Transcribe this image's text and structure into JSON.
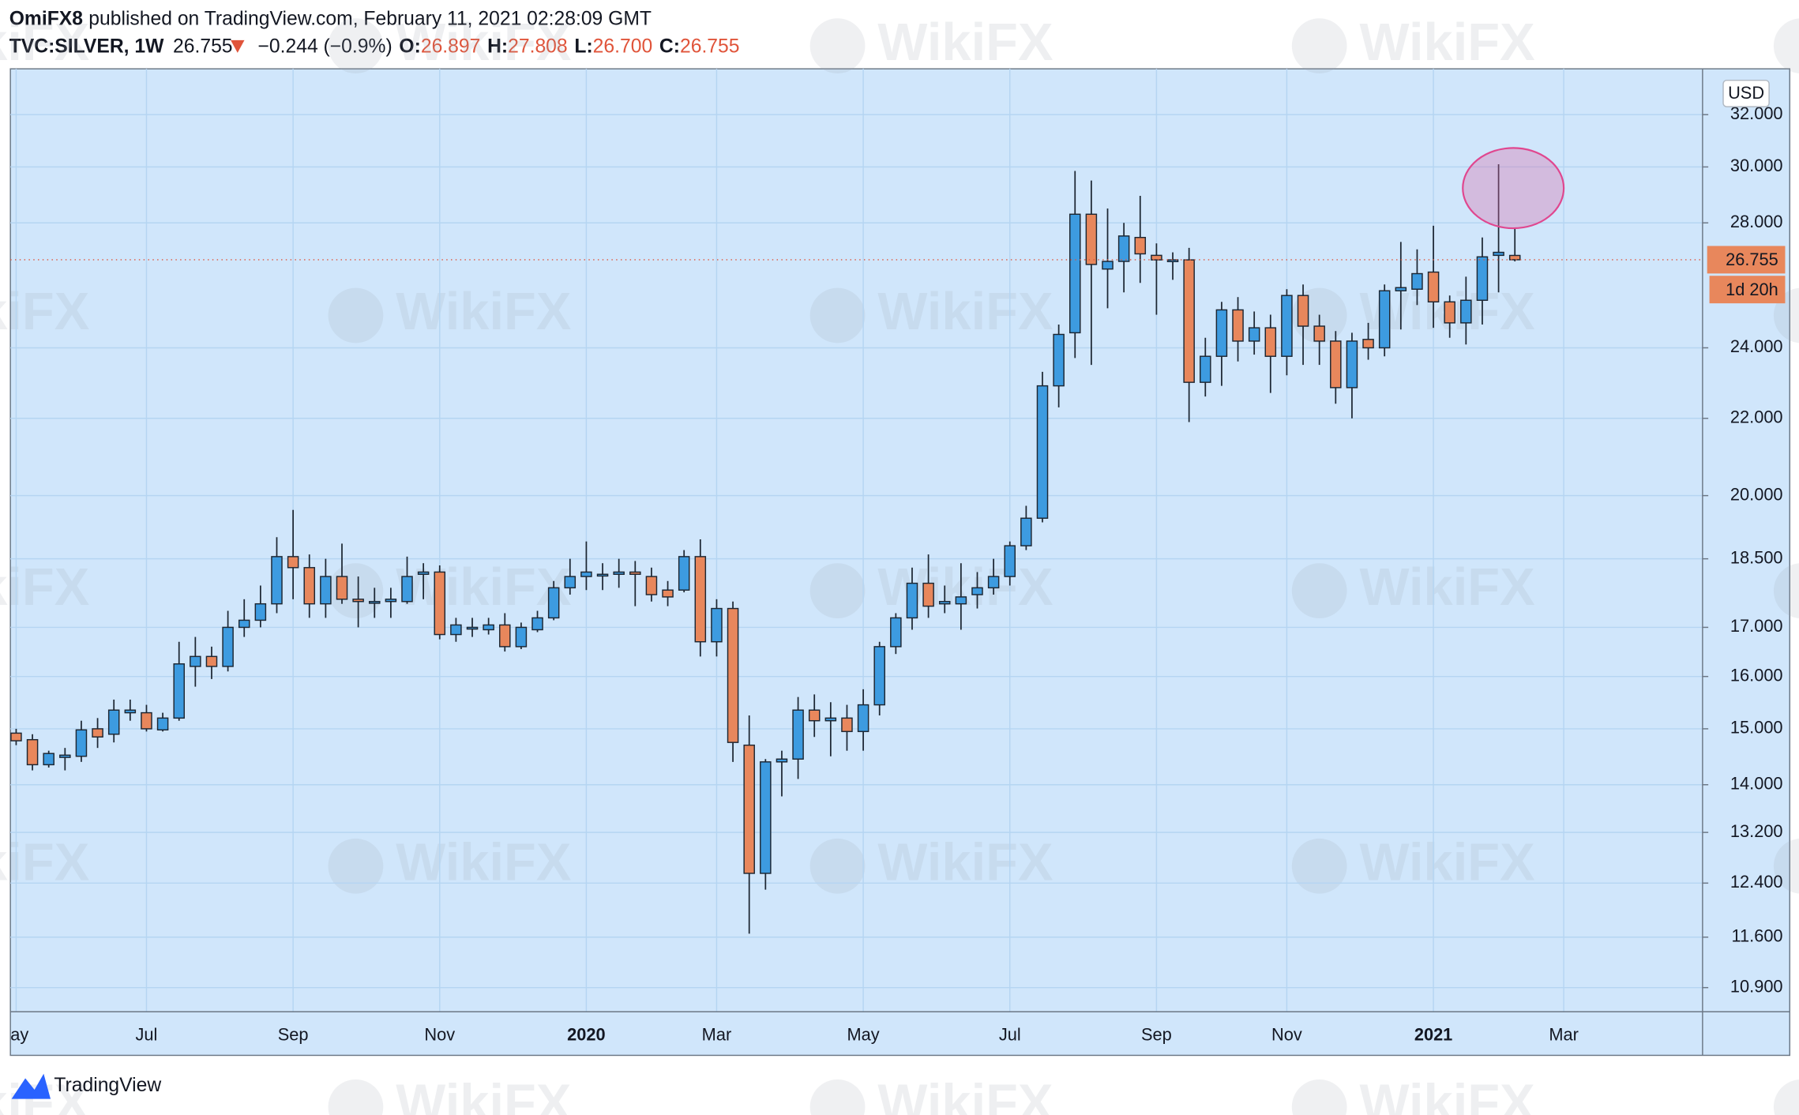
{
  "header": {
    "author": "OmiFX8",
    "published": "published on TradingView.com, February 11, 2021 02:28:09 GMT",
    "symbol": "TVC:SILVER, 1W",
    "last": "26.755",
    "change": "−0.244 (−0.9%)",
    "o_label": "O:",
    "o": "26.897",
    "h_label": "H:",
    "h": "27.808",
    "l_label": "L:",
    "l": "26.700",
    "c_label": "C:",
    "c": "26.755"
  },
  "watermark": "WikiFX",
  "footer": {
    "brand": "TradingView"
  },
  "chart_data": {
    "type": "candlestick",
    "currency": "USD",
    "price_line": 26.755,
    "countdown": "1d 20h",
    "up_color": "#3d9be0",
    "down_color": "#e8875c",
    "log_scale": true,
    "grid": true,
    "categories": [
      "ay",
      null,
      null,
      null,
      null,
      null,
      null,
      null,
      "Jul",
      null,
      null,
      null,
      null,
      null,
      null,
      null,
      null,
      "Sep",
      null,
      null,
      null,
      null,
      null,
      null,
      null,
      null,
      "Nov",
      null,
      null,
      null,
      null,
      null,
      null,
      null,
      null,
      "2020",
      null,
      null,
      null,
      null,
      null,
      null,
      null,
      "Mar",
      null,
      null,
      null,
      null,
      null,
      null,
      null,
      null,
      "May",
      null,
      null,
      null,
      null,
      null,
      null,
      null,
      null,
      "Jul",
      null,
      null,
      null,
      null,
      null,
      null,
      null,
      null,
      "Sep",
      null,
      null,
      null,
      null,
      null,
      null,
      null,
      "Nov",
      null,
      null,
      null,
      null,
      null,
      null,
      null,
      null,
      "2021",
      null,
      null,
      null,
      null,
      null,
      null,
      null,
      "Mar"
    ],
    "open": [
      14.92,
      14.8,
      14.35,
      14.48,
      14.5,
      15.0,
      14.9,
      15.3,
      15.3,
      14.98,
      15.2,
      16.2,
      16.4,
      16.2,
      17.0,
      17.15,
      17.5,
      18.55,
      18.3,
      17.5,
      18.1,
      17.6,
      17.55,
      17.55,
      17.55,
      18.15,
      18.2,
      16.85,
      17.0,
      16.95,
      17.05,
      16.6,
      16.95,
      17.2,
      17.85,
      18.1,
      18.15,
      18.15,
      18.2,
      18.1,
      17.8,
      17.8,
      18.55,
      16.7,
      17.4,
      14.7,
      12.55,
      14.4,
      14.45,
      15.35,
      15.15,
      15.2,
      14.95,
      15.45,
      16.6,
      17.2,
      17.95,
      17.5,
      17.5,
      17.7,
      17.85,
      18.1,
      18.8,
      19.45,
      22.9,
      24.45,
      28.3,
      26.45,
      26.7,
      27.5,
      26.9,
      26.75,
      26.75,
      23.0,
      23.75,
      25.15,
      24.2,
      24.6,
      23.75,
      25.6,
      24.65,
      24.2,
      22.85,
      24.25,
      24.0,
      25.75,
      25.8,
      26.35,
      25.4,
      24.75,
      25.45,
      26.9,
      26.897,
      null,
      null,
      null
    ],
    "high": [
      15.0,
      14.9,
      14.6,
      14.65,
      15.15,
      15.2,
      15.55,
      15.55,
      15.45,
      15.3,
      16.7,
      16.8,
      16.6,
      17.35,
      17.6,
      17.9,
      19.0,
      19.65,
      18.6,
      18.5,
      18.85,
      18.1,
      17.85,
      17.85,
      18.55,
      18.4,
      18.35,
      17.2,
      17.2,
      17.2,
      17.3,
      17.1,
      17.35,
      18.0,
      18.5,
      18.9,
      18.4,
      18.5,
      18.45,
      18.3,
      18.0,
      18.7,
      18.95,
      17.6,
      17.55,
      15.25,
      14.45,
      14.6,
      15.6,
      15.65,
      15.5,
      15.45,
      15.75,
      16.7,
      17.3,
      18.3,
      18.6,
      17.9,
      18.4,
      18.2,
      18.5,
      18.9,
      19.75,
      23.3,
      24.7,
      29.85,
      29.5,
      28.5,
      28.0,
      28.95,
      27.3,
      27.0,
      27.15,
      24.3,
      25.4,
      25.55,
      25.1,
      25.0,
      25.8,
      25.95,
      25.0,
      24.5,
      24.45,
      24.75,
      25.95,
      27.35,
      27.1,
      27.9,
      25.6,
      26.2,
      27.5,
      30.1,
      27.808,
      null,
      null,
      null
    ],
    "low": [
      14.7,
      14.25,
      14.3,
      14.25,
      14.4,
      14.65,
      14.75,
      15.15,
      14.95,
      14.95,
      15.15,
      15.8,
      15.95,
      16.1,
      16.8,
      17.0,
      17.3,
      17.6,
      17.2,
      17.2,
      17.5,
      17.0,
      17.2,
      17.2,
      17.5,
      17.6,
      16.75,
      16.7,
      16.8,
      16.85,
      16.5,
      16.55,
      16.9,
      17.15,
      17.7,
      17.8,
      17.8,
      17.85,
      17.45,
      17.55,
      17.45,
      17.75,
      16.4,
      16.4,
      14.4,
      11.65,
      12.3,
      13.8,
      14.1,
      14.85,
      14.5,
      14.6,
      14.6,
      15.25,
      16.45,
      16.95,
      17.2,
      17.3,
      16.95,
      17.4,
      17.7,
      17.9,
      18.7,
      19.35,
      22.3,
      23.7,
      23.5,
      25.2,
      25.7,
      26.0,
      25.0,
      26.1,
      21.9,
      22.6,
      22.9,
      23.6,
      23.8,
      22.7,
      23.2,
      23.5,
      23.5,
      22.4,
      22.0,
      23.65,
      23.75,
      24.55,
      25.3,
      24.6,
      24.3,
      24.1,
      24.7,
      25.7,
      26.7,
      null,
      null,
      null
    ],
    "close": [
      14.78,
      14.35,
      14.55,
      14.52,
      14.98,
      14.85,
      15.35,
      15.35,
      15.0,
      15.2,
      16.25,
      16.4,
      16.2,
      17.0,
      17.15,
      17.5,
      18.55,
      18.3,
      17.5,
      18.1,
      17.6,
      17.55,
      17.55,
      17.6,
      18.1,
      18.2,
      16.85,
      17.05,
      17.0,
      17.05,
      16.6,
      17.0,
      17.2,
      17.85,
      18.1,
      18.2,
      18.15,
      18.2,
      18.15,
      17.7,
      17.65,
      18.55,
      16.7,
      17.4,
      14.75,
      12.55,
      14.4,
      14.45,
      15.35,
      15.15,
      15.2,
      14.95,
      15.45,
      16.6,
      17.2,
      17.95,
      17.45,
      17.55,
      17.65,
      17.85,
      18.1,
      18.8,
      19.45,
      22.9,
      24.4,
      28.3,
      26.6,
      26.7,
      27.55,
      26.95,
      26.75,
      26.75,
      23.0,
      23.75,
      25.15,
      24.2,
      24.6,
      23.75,
      25.6,
      24.65,
      24.2,
      22.85,
      24.2,
      24.0,
      25.75,
      25.85,
      26.3,
      25.4,
      24.75,
      25.45,
      26.85,
      27.0,
      26.755,
      null,
      null,
      null
    ],
    "ylim": [
      10.58,
      33.86
    ],
    "yticks": [
      {
        "value": 10.9,
        "label": "10.900"
      },
      {
        "value": 11.6,
        "label": "11.600"
      },
      {
        "value": 12.4,
        "label": "12.400"
      },
      {
        "value": 13.2,
        "label": "13.200"
      },
      {
        "value": 14,
        "label": "14.000"
      },
      {
        "value": 15,
        "label": "15.000"
      },
      {
        "value": 16,
        "label": "16.000"
      },
      {
        "value": 17,
        "label": "17.000"
      },
      {
        "value": 18.5,
        "label": "18.500"
      },
      {
        "value": 20,
        "label": "20.000"
      },
      {
        "value": 22,
        "label": "22.000"
      },
      {
        "value": 24,
        "label": "24.000"
      },
      {
        "value": 28,
        "label": "28.000"
      },
      {
        "value": 30,
        "label": "30.000"
      },
      {
        "value": 32,
        "label": "32.000"
      }
    ]
  }
}
